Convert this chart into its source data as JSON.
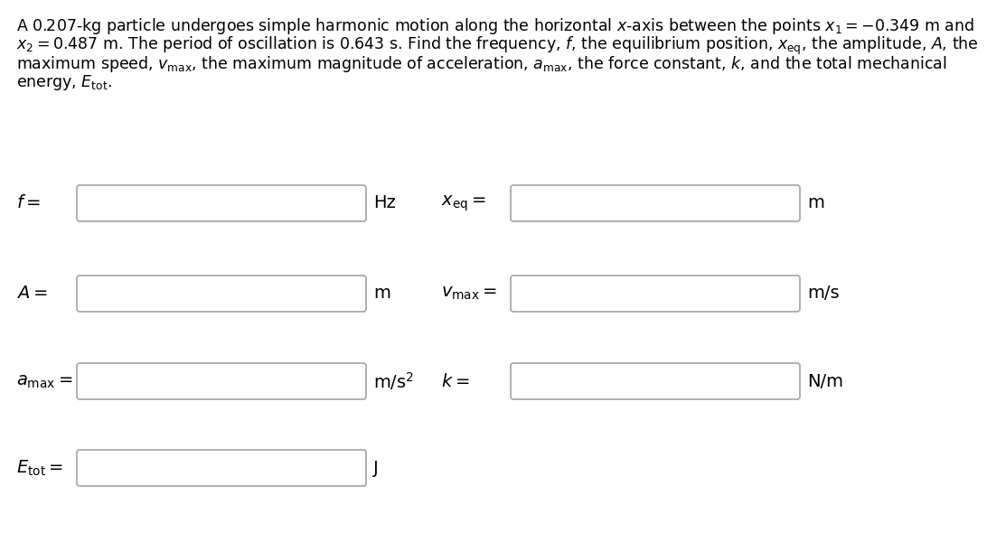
{
  "bg_color": "#ffffff",
  "text_color": "#000000",
  "label_color": "#000000",
  "rows": [
    {
      "left_label": "$f =$",
      "left_unit": "Hz",
      "right_label": "$x_\\mathrm{eq} =$",
      "right_unit": "m"
    },
    {
      "left_label": "$A =$",
      "left_unit": "m",
      "right_label": "$v_\\mathrm{max} =$",
      "right_unit": "m/s"
    },
    {
      "left_label": "$a_\\mathrm{max} =$",
      "left_unit": "m/s$^2$",
      "right_label": "$k =$",
      "right_unit": "N/m"
    }
  ],
  "bottom_row": {
    "left_label": "$E_\\mathrm{tot} =$",
    "left_unit": "J"
  },
  "box_color": "#aaaaaa",
  "box_facecolor": "#ffffff",
  "font_size_text": 12.5,
  "font_size_label": 14,
  "paragraph_lines": [
    "A 0.207-kg particle undergoes simple harmonic motion along the horizontal $x$-axis between the points $x_1 = -0.349$ m and",
    "$x_2 = 0.487$ m. The period of oscillation is 0.643 s. Find the frequency, $f$, the equilibrium position, $x_\\mathrm{eq}$, the amplitude, $A$, the",
    "maximum speed, $v_\\mathrm{max}$, the maximum magnitude of acceleration, $a_\\mathrm{max}$, the force constant, $k$, and the total mechanical",
    "energy, $E_\\mathrm{tot}$."
  ]
}
